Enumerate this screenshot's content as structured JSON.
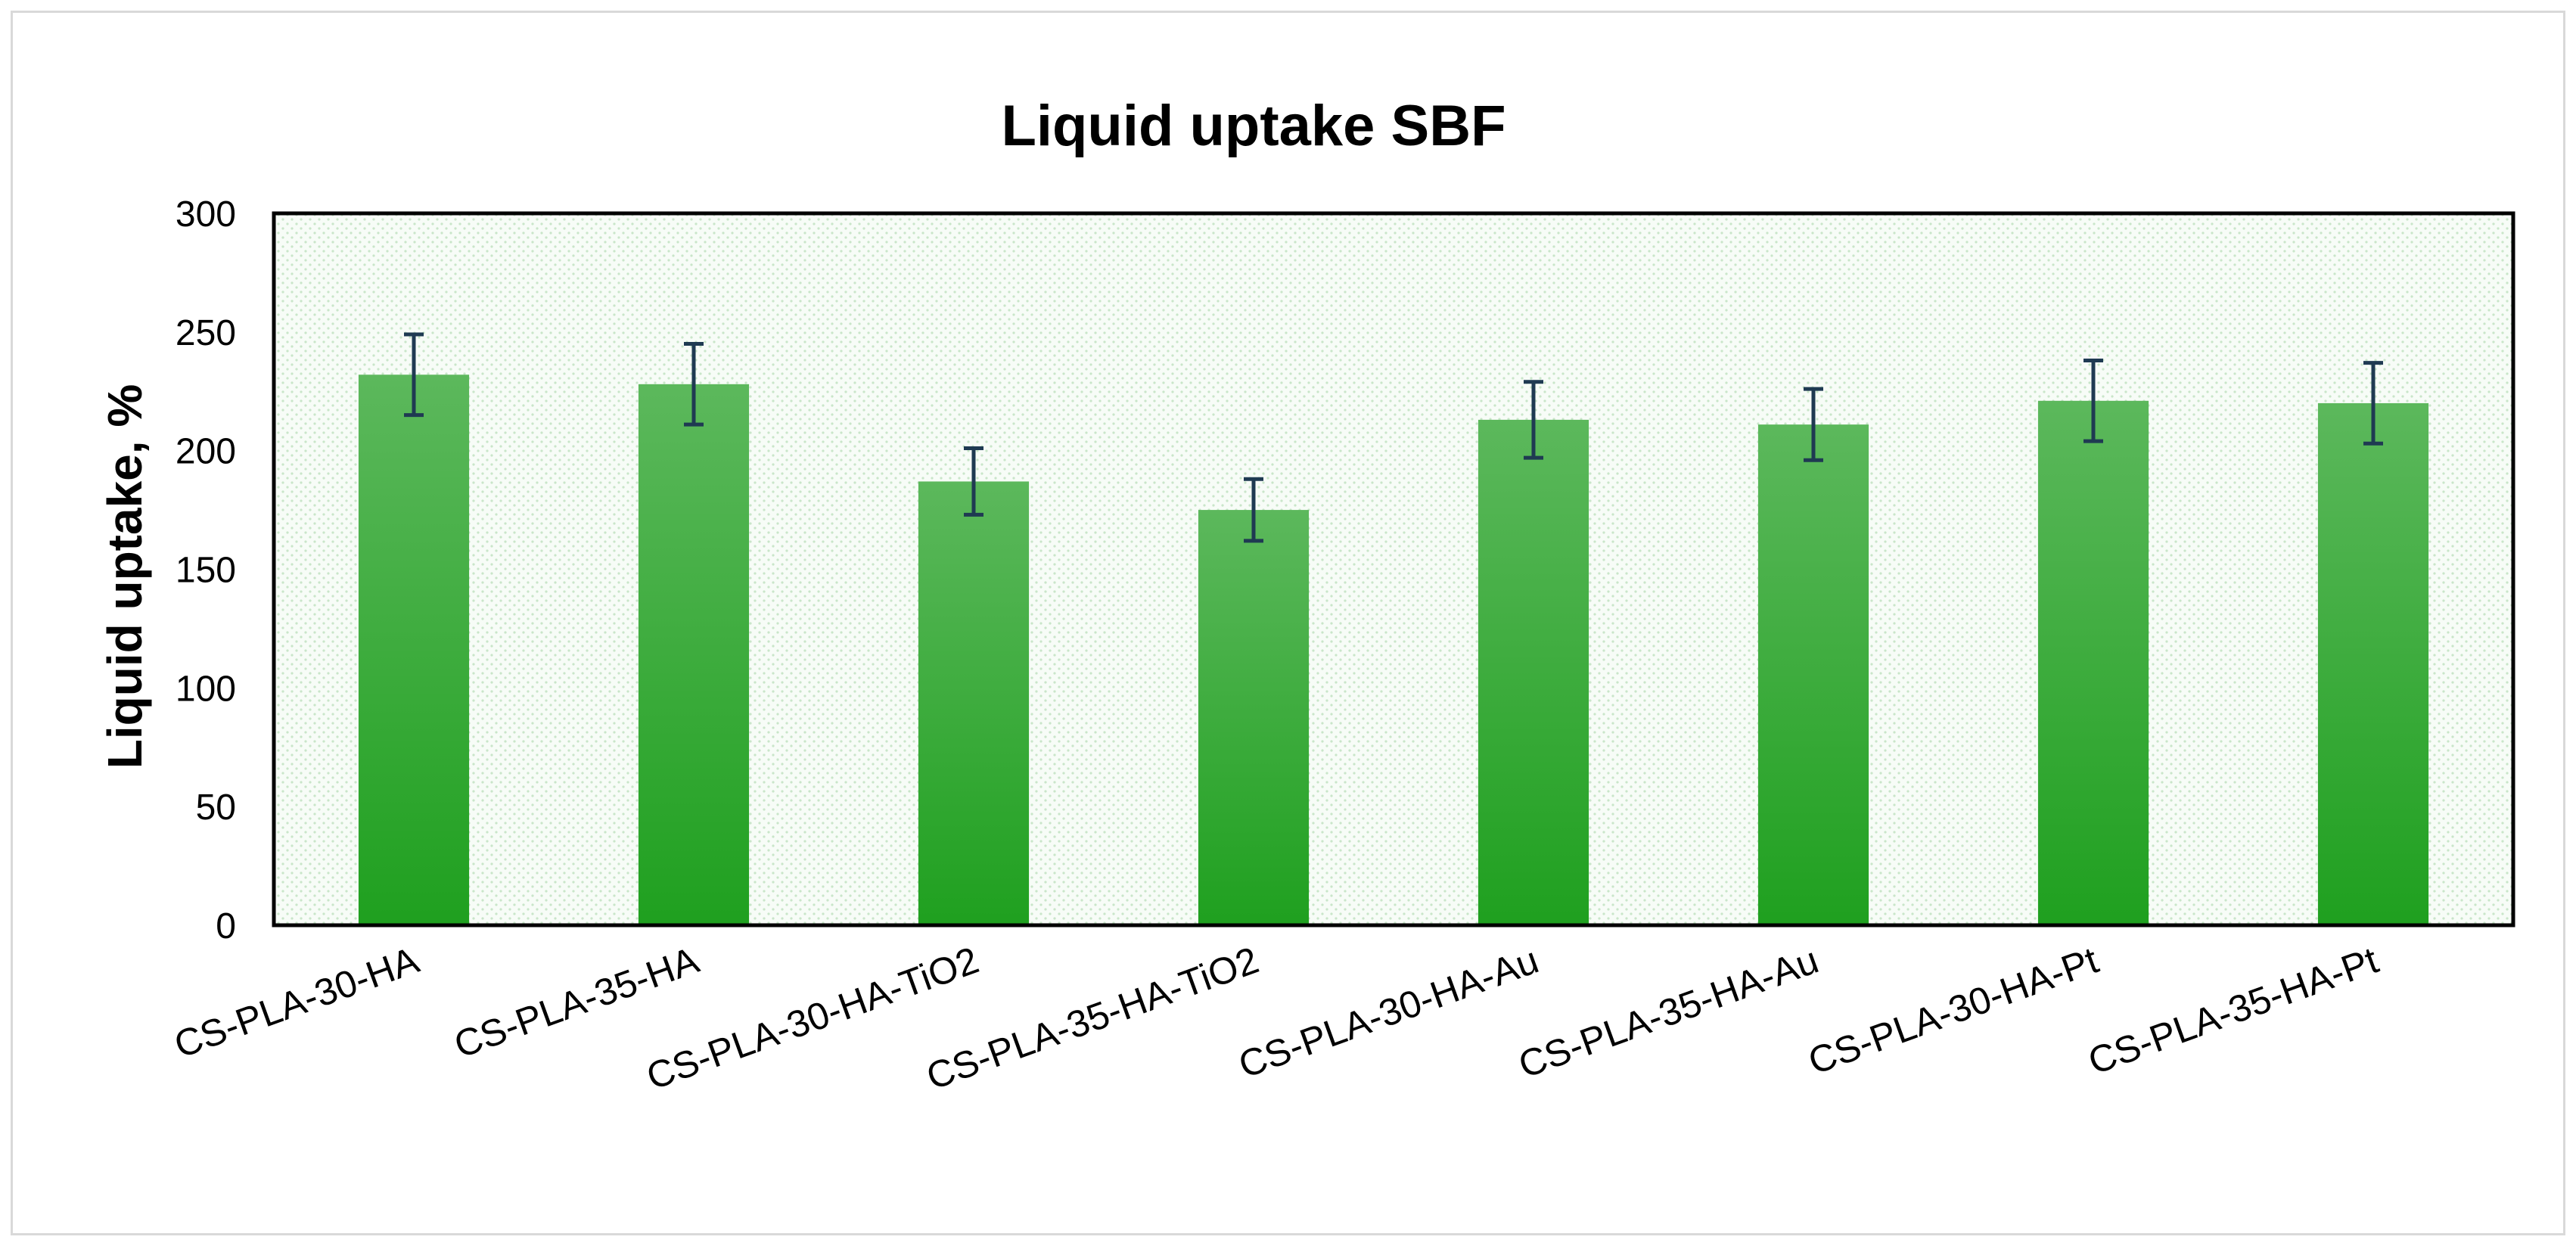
{
  "chart_data": {
    "type": "bar",
    "title": "Liquid uptake SBF",
    "xlabel": "",
    "ylabel": "Liquid uptake, %",
    "ylim": [
      0,
      300
    ],
    "yticks": [
      "0",
      "50",
      "100",
      "150",
      "200",
      "250",
      "300"
    ],
    "categories": [
      "CS-PLA-30-HA",
      "CS-PLA-35-HA",
      "CS-PLA-30-HA-TiO2",
      "CS-PLA-35-HA-TiO2",
      "CS-PLA-30-HA-Au",
      "CS-PLA-35-HA-Au",
      "CS-PLA-30-HA-Pt",
      "CS-PLA-35-HA-Pt"
    ],
    "values": [
      232,
      228,
      187,
      175,
      213,
      211,
      221,
      220
    ],
    "errors": [
      17,
      17,
      14,
      13,
      16,
      15,
      17,
      17
    ],
    "grid": false,
    "legend": "none",
    "colors": {
      "bar_top": "#5cb85c",
      "bar_bottom": "#1fa01f",
      "error_bar": "#1f3a52",
      "plot_dots": "#c9e6c9",
      "plot_background": "#f7fcf7"
    }
  }
}
